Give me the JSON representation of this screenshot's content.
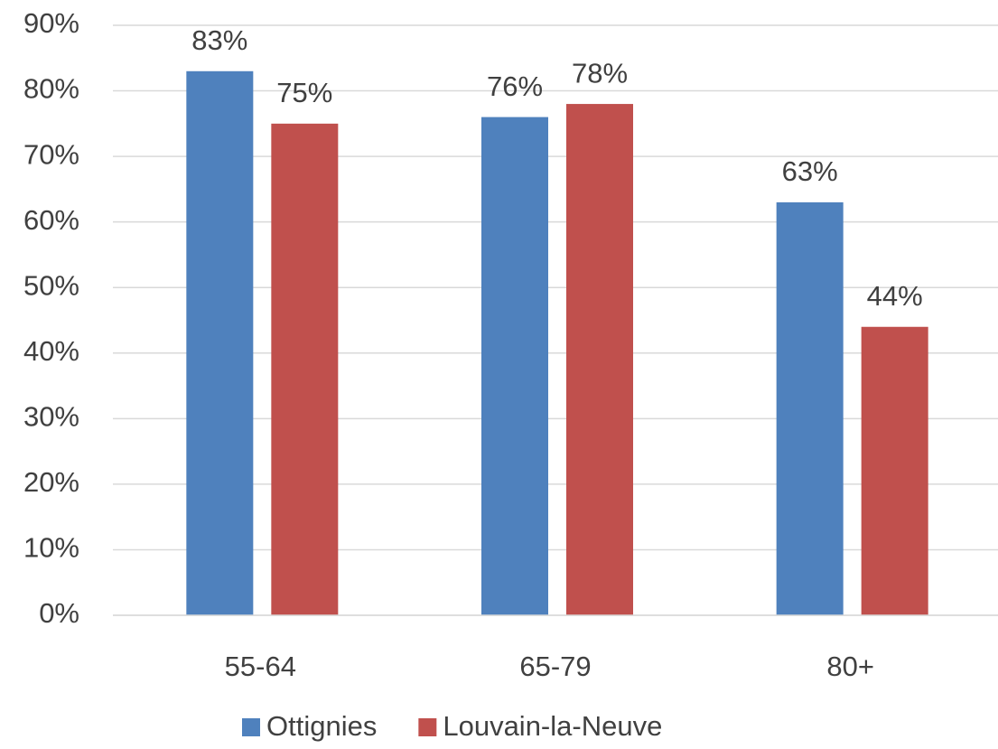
{
  "chart_data": {
    "type": "bar",
    "categories": [
      "55-64",
      "65-79",
      "80+"
    ],
    "series": [
      {
        "name": "Ottignies",
        "color": "#4f81bd",
        "values": [
          83,
          76,
          63
        ],
        "value_labels": [
          "83%",
          "76%",
          "63%"
        ]
      },
      {
        "name": "Louvain-la-Neuve",
        "color": "#c0504d",
        "values": [
          75,
          78,
          44
        ],
        "value_labels": [
          "75%",
          "78%",
          "44%"
        ]
      }
    ],
    "ylim": [
      0,
      90
    ],
    "yticks": [
      {
        "value": 0,
        "label": "0%"
      },
      {
        "value": 10,
        "label": "10%"
      },
      {
        "value": 20,
        "label": "20%"
      },
      {
        "value": 30,
        "label": "30%"
      },
      {
        "value": 40,
        "label": "40%"
      },
      {
        "value": 50,
        "label": "50%"
      },
      {
        "value": 60,
        "label": "60%"
      },
      {
        "value": 70,
        "label": "70%"
      },
      {
        "value": 80,
        "label": "80%"
      },
      {
        "value": 90,
        "label": "90%"
      }
    ],
    "grid": true,
    "legend": "bottom"
  }
}
